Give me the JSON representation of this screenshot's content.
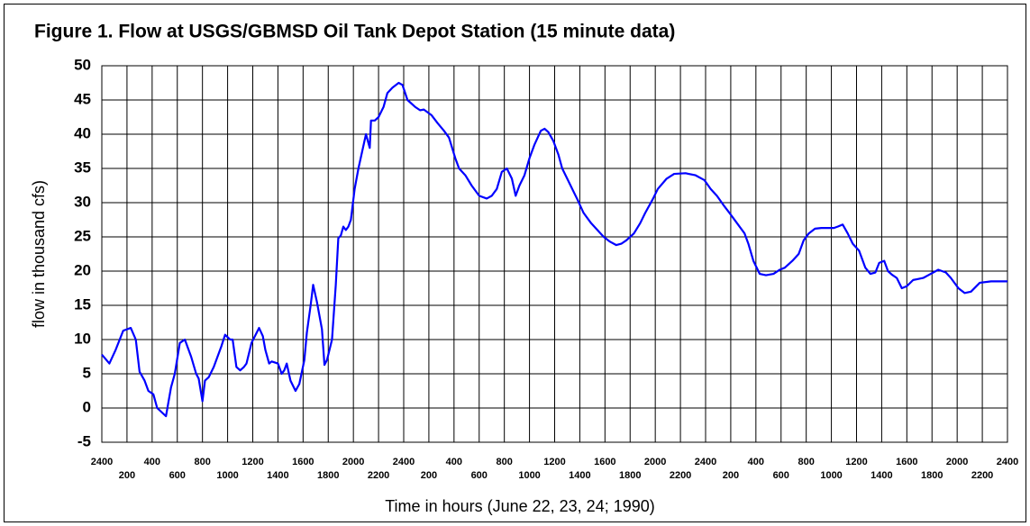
{
  "chart_data": {
    "type": "line",
    "title": "Figure 1.  Flow at USGS/GBMSD Oil Tank Depot Station (15 minute data)",
    "xlabel": "Time in hours (June 22, 23, 24; 1990)",
    "ylabel": "flow in thousand cfs)",
    "xlim": [
      0,
      72
    ],
    "ylim": [
      -5,
      50
    ],
    "yticks": [
      -5,
      0,
      5,
      10,
      15,
      20,
      25,
      30,
      35,
      40,
      45,
      50
    ],
    "xticks": [
      {
        "value": 0,
        "label": "2400"
      },
      {
        "value": 2,
        "label": "200"
      },
      {
        "value": 4,
        "label": "400"
      },
      {
        "value": 6,
        "label": "600"
      },
      {
        "value": 8,
        "label": "800"
      },
      {
        "value": 10,
        "label": "1000"
      },
      {
        "value": 12,
        "label": "1200"
      },
      {
        "value": 14,
        "label": "1400"
      },
      {
        "value": 16,
        "label": "1600"
      },
      {
        "value": 18,
        "label": "1800"
      },
      {
        "value": 20,
        "label": "2000"
      },
      {
        "value": 22,
        "label": "2200"
      },
      {
        "value": 24,
        "label": "2400"
      },
      {
        "value": 26,
        "label": "200"
      },
      {
        "value": 28,
        "label": "400"
      },
      {
        "value": 30,
        "label": "600"
      },
      {
        "value": 32,
        "label": "800"
      },
      {
        "value": 34,
        "label": "1000"
      },
      {
        "value": 36,
        "label": "1200"
      },
      {
        "value": 38,
        "label": "1400"
      },
      {
        "value": 40,
        "label": "1600"
      },
      {
        "value": 42,
        "label": "1800"
      },
      {
        "value": 44,
        "label": "2000"
      },
      {
        "value": 46,
        "label": "2200"
      },
      {
        "value": 48,
        "label": "2400"
      },
      {
        "value": 50,
        "label": "200"
      },
      {
        "value": 52,
        "label": "400"
      },
      {
        "value": 54,
        "label": "600"
      },
      {
        "value": 56,
        "label": "800"
      },
      {
        "value": 58,
        "label": "1000"
      },
      {
        "value": 60,
        "label": "1200"
      },
      {
        "value": 62,
        "label": "1400"
      },
      {
        "value": 64,
        "label": "1600"
      },
      {
        "value": 66,
        "label": "1800"
      },
      {
        "value": 68,
        "label": "2000"
      },
      {
        "value": 70,
        "label": "2200"
      },
      {
        "value": 72,
        "label": "2400"
      }
    ],
    "grid": true,
    "x": [
      0,
      0.6,
      1.1,
      1.7,
      2.3,
      2.7,
      3.0,
      3.4,
      3.7,
      4.1,
      4.4,
      5.1,
      5.5,
      5.8,
      6.2,
      6.6,
      7.0,
      7.1,
      7.5,
      7.7,
      8.0,
      8.2,
      8.5,
      8.9,
      9.5,
      9.8,
      10.2,
      10.4,
      10.7,
      11.0,
      11.3,
      11.5,
      11.9,
      12.5,
      12.8,
      13.0,
      13.3,
      13.5,
      14.0,
      14.3,
      14.5,
      14.7,
      15.0,
      15.4,
      15.7,
      16.1,
      16.3,
      16.6,
      16.8,
      17.1,
      17.3,
      17.5,
      17.7,
      17.9,
      18.3,
      18.6,
      18.8,
      19.0,
      19.2,
      19.4,
      19.6,
      19.8,
      20.1,
      20.4,
      20.7,
      21.0,
      21.3,
      21.4,
      21.7,
      22.0,
      22.4,
      22.7,
      23.1,
      23.6,
      23.9,
      24.3,
      24.9,
      25.3,
      25.6,
      26.2,
      26.7,
      27.2,
      27.6,
      28.1,
      28.4,
      28.9,
      29.4,
      30.0,
      30.6,
      31.0,
      31.4,
      31.8,
      32.2,
      32.6,
      32.9,
      33.2,
      33.6,
      34.0,
      34.4,
      34.9,
      35.2,
      35.5,
      35.9,
      36.3,
      36.6,
      37.0,
      37.8,
      38.3,
      38.9,
      39.4,
      39.9,
      40.4,
      40.9,
      41.3,
      41.7,
      42.3,
      42.8,
      43.2,
      43.8,
      44.2,
      44.9,
      45.5,
      46.4,
      47.2,
      47.9,
      48.4,
      48.9,
      49.4,
      49.9,
      50.5,
      51.1,
      51.4,
      51.8,
      52.3,
      52.8,
      53.4,
      53.9,
      54.3,
      54.9,
      55.4,
      55.8,
      56.2,
      56.7,
      57.2,
      58.2,
      58.5,
      58.9,
      59.3,
      59.7,
      60.2,
      60.7,
      61.1,
      61.5,
      61.8,
      62.2,
      62.5,
      62.8,
      63.2,
      63.6,
      64.0,
      64.5,
      65.3,
      65.8,
      66.5,
      67.1,
      67.5,
      68.1,
      68.6,
      69.1,
      69.8,
      70.7,
      72
    ],
    "series": [
      {
        "name": "flow",
        "color": "#0000ff",
        "values": [
          7.8,
          6.5,
          8.5,
          11.3,
          11.7,
          10,
          5.3,
          4,
          2.5,
          2,
          0,
          -1.2,
          3,
          5,
          9.5,
          10,
          8,
          7.5,
          5,
          4.3,
          1,
          4,
          4.5,
          6,
          9,
          10.7,
          10,
          10,
          6,
          5.5,
          6,
          6.5,
          9.5,
          11.7,
          10.5,
          8.5,
          6.5,
          6.8,
          6.5,
          5,
          5.5,
          6.5,
          4,
          2.5,
          3.5,
          7,
          11,
          15,
          18,
          15.5,
          13.5,
          11.5,
          6.3,
          7,
          10,
          18,
          24.8,
          25.2,
          26.5,
          26,
          26.5,
          27.5,
          32,
          35,
          37.5,
          40,
          38,
          42,
          42,
          42.5,
          44,
          46,
          46.8,
          47.5,
          47.2,
          45,
          44,
          43.5,
          43.6,
          42.8,
          41.6,
          40.5,
          39.5,
          36.5,
          35,
          34,
          32.5,
          31,
          30.6,
          31,
          32,
          34.5,
          35,
          33.5,
          31,
          32.5,
          34,
          36.5,
          38.5,
          40.5,
          40.8,
          40.3,
          39,
          37,
          35,
          33.5,
          30.5,
          28.5,
          27,
          26,
          25,
          24.3,
          23.8,
          24,
          24.5,
          25.5,
          27,
          28.5,
          30.5,
          32,
          33.5,
          34.2,
          34.3,
          34,
          33.3,
          32,
          31,
          29.7,
          28.5,
          27,
          25.5,
          24,
          21.5,
          19.6,
          19.4,
          19.6,
          20.2,
          20.5,
          21.5,
          22.5,
          24.5,
          25.5,
          26.2,
          26.3,
          26.3,
          26.5,
          26.8,
          25.5,
          24,
          23,
          20.5,
          19.6,
          19.8,
          21.2,
          21.5,
          20,
          19.5,
          19,
          17.5,
          17.8,
          18.7,
          19,
          19.5,
          20.2,
          19.8,
          19,
          17.5,
          16.8,
          17,
          18.3,
          18.5,
          18.5
        ]
      }
    ]
  }
}
